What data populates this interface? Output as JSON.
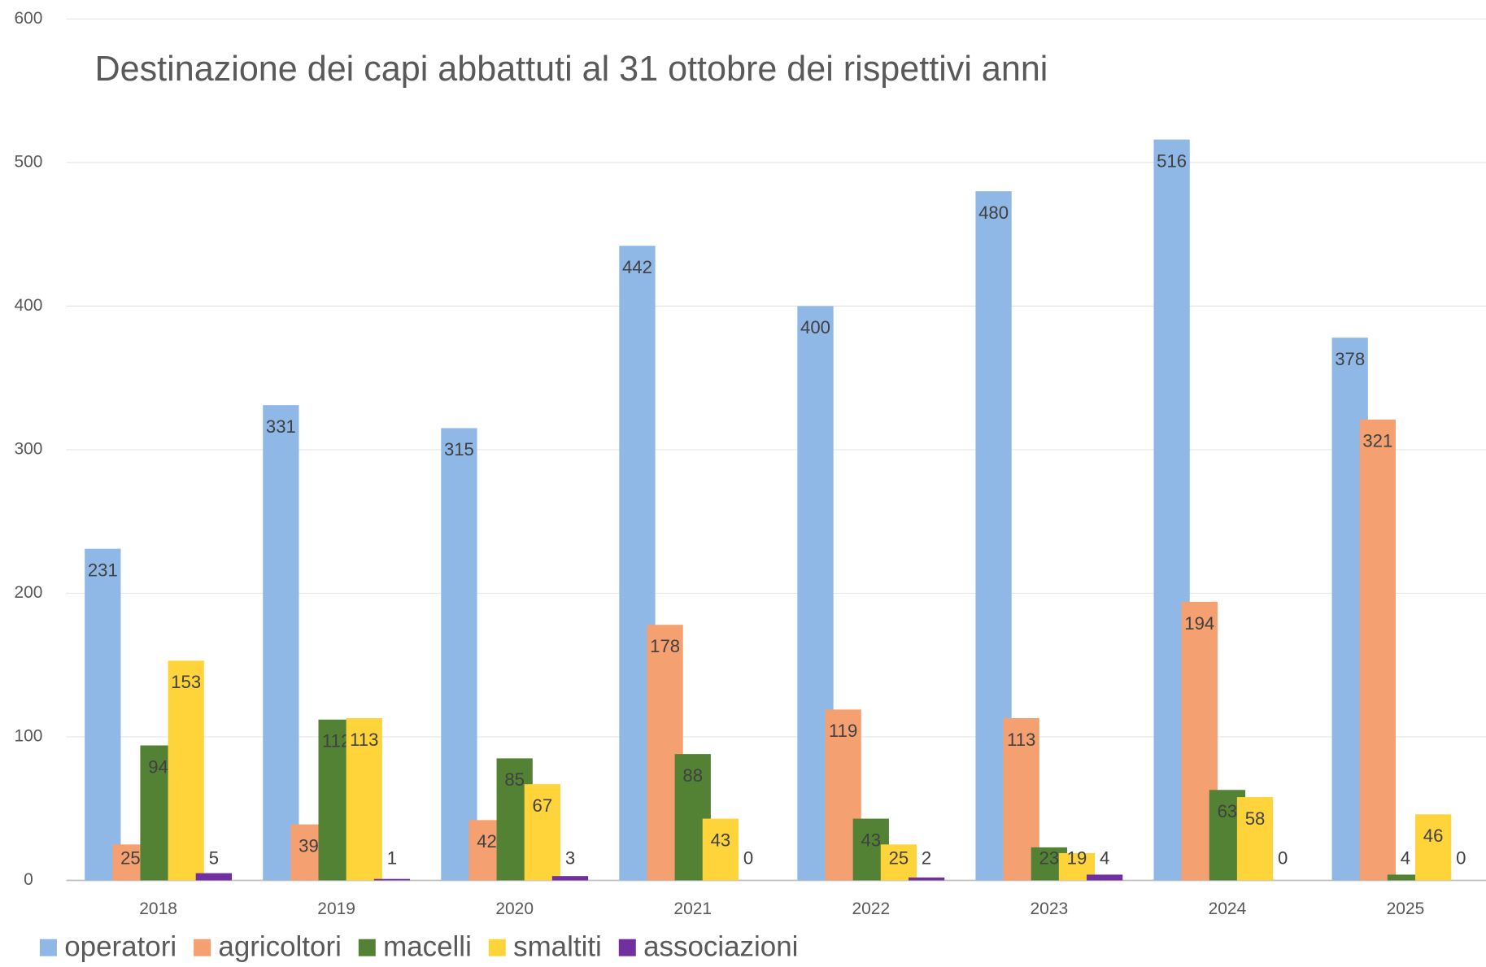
{
  "chart_data": {
    "type": "bar",
    "title": "Destinazione dei capi abbattuti al 31 ottobre dei rispettivi anni",
    "categories": [
      "2018",
      "2019",
      "2020",
      "2021",
      "2022",
      "2023",
      "2024",
      "2025"
    ],
    "series": [
      {
        "name": "operatori",
        "color": "#8fb8e6",
        "values": [
          231,
          331,
          315,
          442,
          400,
          480,
          516,
          378
        ]
      },
      {
        "name": "agricoltori",
        "color": "#f4a070",
        "values": [
          25,
          39,
          42,
          178,
          119,
          113,
          194,
          321
        ]
      },
      {
        "name": "macelli",
        "color": "#548235",
        "values": [
          94,
          112,
          85,
          88,
          43,
          23,
          63,
          4
        ]
      },
      {
        "name": "smaltiti",
        "color": "#ffd43b",
        "values": [
          153,
          113,
          67,
          43,
          25,
          19,
          58,
          46
        ]
      },
      {
        "name": "associazioni",
        "color": "#7030a0",
        "values": [
          5,
          1,
          3,
          0,
          2,
          4,
          0,
          0
        ]
      }
    ],
    "ylim": [
      0,
      600
    ],
    "yticks": [
      0,
      100,
      200,
      300,
      400,
      500,
      600
    ],
    "grid": true,
    "legend": "bottom-left",
    "data_labels": true
  }
}
